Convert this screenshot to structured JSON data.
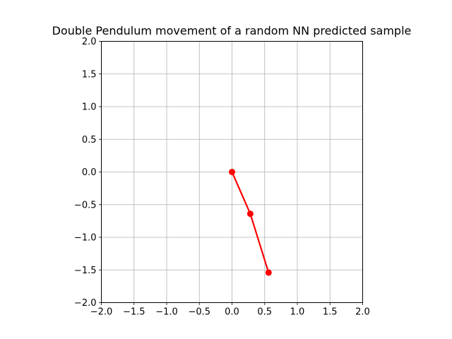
{
  "chart_data": {
    "type": "line",
    "title": "Double Pendulum movement of a random NN predicted sample",
    "xlabel": "",
    "ylabel": "",
    "xlim": [
      -2.0,
      2.0
    ],
    "ylim": [
      -2.0,
      2.0
    ],
    "grid": true,
    "x_ticks": [
      -2.0,
      -1.5,
      -1.0,
      -0.5,
      0.0,
      0.5,
      1.0,
      1.5,
      2.0
    ],
    "y_ticks": [
      -2.0,
      -1.5,
      -1.0,
      -0.5,
      0.0,
      0.5,
      1.0,
      1.5,
      2.0
    ],
    "x_tick_labels": [
      "−2.0",
      "−1.5",
      "−1.0",
      "−0.5",
      "0.0",
      "0.5",
      "1.0",
      "1.5",
      "2.0"
    ],
    "y_tick_labels": [
      "−2.0",
      "−1.5",
      "−1.0",
      "−0.5",
      "0.0",
      "0.5",
      "1.0",
      "1.5",
      "2.0"
    ],
    "series": [
      {
        "color": "#ff0000",
        "marker": "circle",
        "points": [
          {
            "x": 0.0,
            "y": 0.0
          },
          {
            "x": 0.28,
            "y": -0.64
          },
          {
            "x": 0.56,
            "y": -1.54
          }
        ]
      }
    ]
  }
}
